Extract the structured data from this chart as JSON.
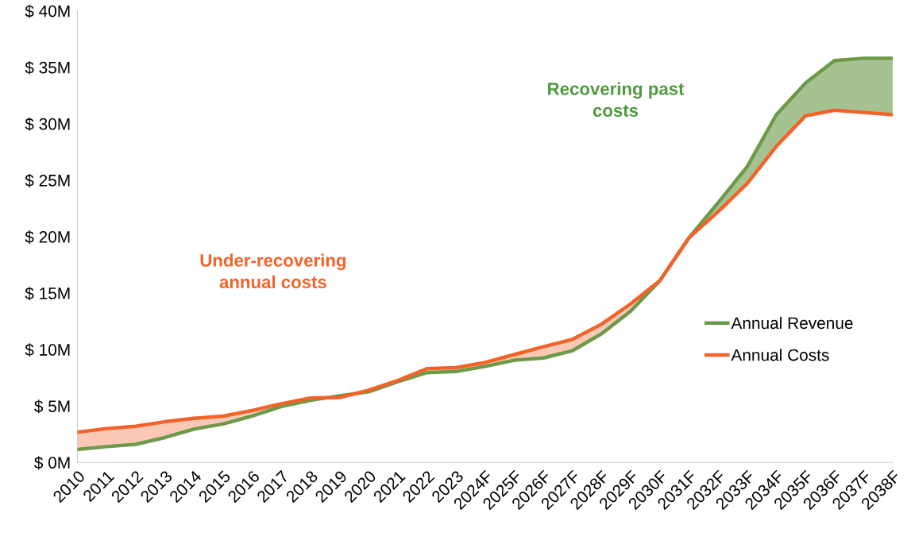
{
  "chart_data": {
    "type": "line",
    "categories": [
      "2010",
      "2011",
      "2012",
      "2013",
      "2014",
      "2015",
      "2016",
      "2017",
      "2018",
      "2019",
      "2020",
      "2021",
      "2022",
      "2023",
      "2024F",
      "2025F",
      "2026F",
      "2027F",
      "2028F",
      "2029F",
      "2030F",
      "2031F",
      "2032F",
      "2033F",
      "2034F",
      "2035F",
      "2036F",
      "2037F",
      "2038F"
    ],
    "series": [
      {
        "name": "Annual Revenue",
        "color": "#6b9a48",
        "values": [
          1.15,
          1.4,
          1.6,
          2.2,
          2.95,
          3.4,
          4.1,
          4.95,
          5.5,
          5.9,
          6.25,
          7.15,
          7.95,
          8.05,
          8.5,
          9.05,
          9.25,
          9.9,
          11.4,
          13.4,
          16.1,
          19.9,
          23.0,
          26.2,
          30.8,
          33.6,
          35.6,
          35.8,
          35.8
        ]
      },
      {
        "name": "Annual Costs",
        "color": "#f26229",
        "values": [
          2.67,
          3.0,
          3.2,
          3.6,
          3.9,
          4.1,
          4.6,
          5.2,
          5.7,
          5.75,
          6.4,
          7.25,
          8.3,
          8.4,
          8.85,
          9.55,
          10.25,
          10.9,
          12.25,
          14.05,
          16.1,
          19.9,
          22.2,
          24.7,
          28.0,
          30.7,
          31.2,
          31.0,
          30.8
        ]
      }
    ],
    "ylim": [
      0,
      40
    ],
    "yticks": [
      {
        "value": 0,
        "label": "$ 0M"
      },
      {
        "value": 5,
        "label": "$ 5M"
      },
      {
        "value": 10,
        "label": "$ 10M"
      },
      {
        "value": 15,
        "label": "$ 15M"
      },
      {
        "value": 20,
        "label": "$ 20M"
      },
      {
        "value": 25,
        "label": "$ 25M"
      },
      {
        "value": 30,
        "label": "$ 30M"
      },
      {
        "value": 35,
        "label": "$ 35M"
      },
      {
        "value": 40,
        "label": "$ 40M"
      }
    ],
    "annotations": [
      "Under-recovering\nannual costs",
      "Recovering past\ncosts"
    ],
    "legend": "center right",
    "grid": false,
    "marker": "none",
    "line_style": "solid"
  }
}
